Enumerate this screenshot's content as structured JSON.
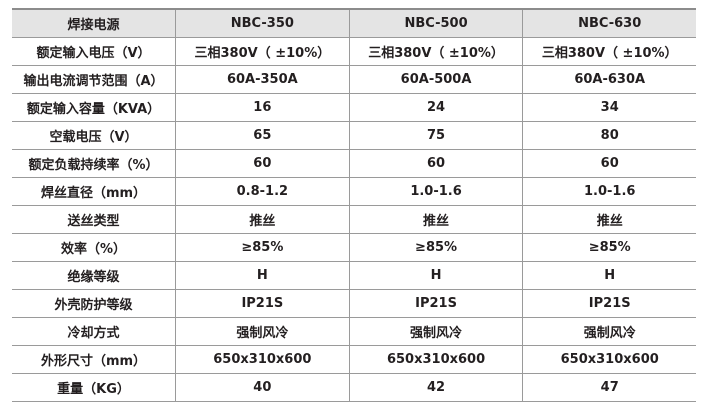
{
  "table": {
    "header": [
      "焊接电源",
      "NBC-350",
      "NBC-500",
      "NBC-630"
    ],
    "rows": [
      [
        "额定输入电压（V）",
        "三相380V（ ±10%）",
        "三相380V（ ±10%）",
        "三相380V（ ±10%）"
      ],
      [
        "输出电流调节范围（A）",
        "60A-350A",
        "60A-500A",
        "60A-630A"
      ],
      [
        "额定输入容量（KVA）",
        "16",
        "24",
        "34"
      ],
      [
        "空载电压（V）",
        "65",
        "75",
        "80"
      ],
      [
        "额定负载持续率（%）",
        "60",
        "60",
        "60"
      ],
      [
        "焊丝直径（mm）",
        "0.8-1.2",
        "1.0-1.6",
        "1.0-1.6"
      ],
      [
        "送丝类型",
        "推丝",
        "推丝",
        "推丝"
      ],
      [
        "效率（%）",
        "≥85%",
        "≥85%",
        "≥85%"
      ],
      [
        "绝缘等级",
        "H",
        "H",
        "H"
      ],
      [
        "外壳防护等级",
        "IP21S",
        "IP21S",
        "IP21S"
      ],
      [
        "冷却方式",
        "强制风冷",
        "强制风冷",
        "强制风冷"
      ],
      [
        "外形尺寸（mm）",
        "650x310x600",
        "650x310x600",
        "650x310x600"
      ],
      [
        "重量（KG）",
        "40",
        "42",
        "47"
      ]
    ]
  },
  "colors": {
    "header_bg": "#e4e4e4",
    "text": "#231f20",
    "border": "#9a9a9a"
  }
}
